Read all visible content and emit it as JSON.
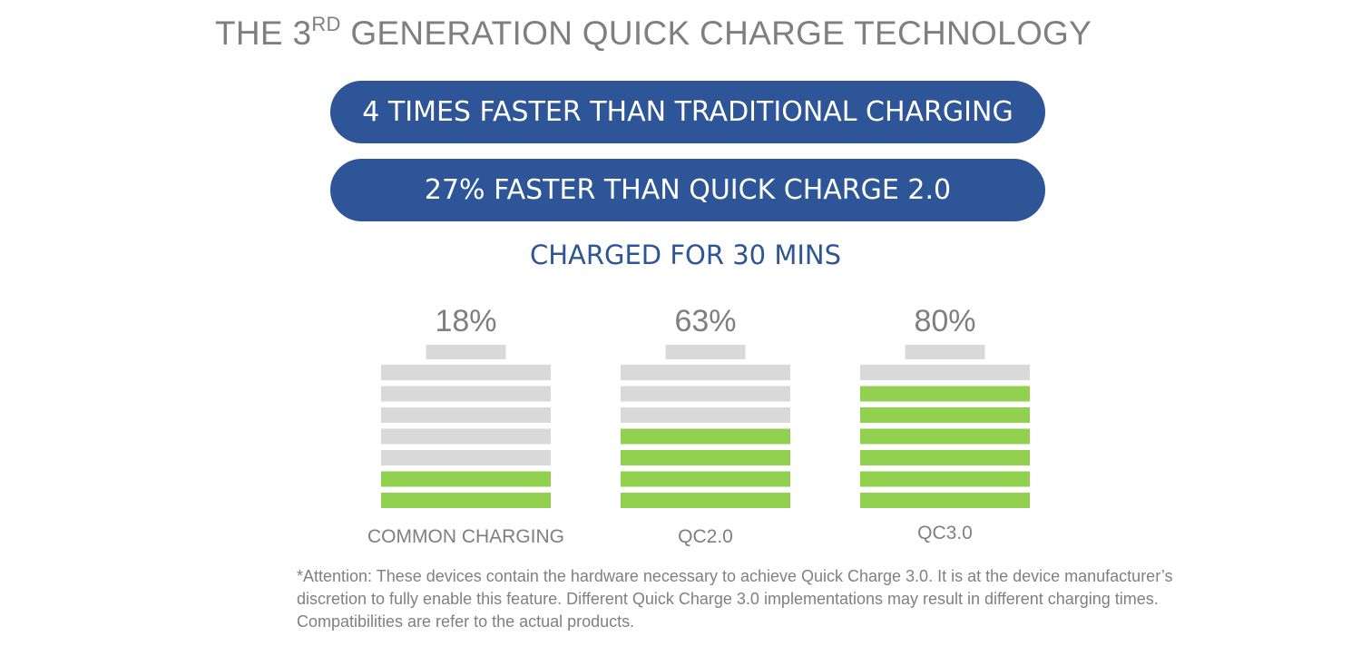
{
  "heading": {
    "prefix": "THE 3",
    "superscript": "RD",
    "suffix": " GENERATION QUICK CHARGE TECHNOLOGY"
  },
  "highlights": [
    "4 TIMES FASTER THAN TRADITIONAL CHARGING",
    "27% FASTER THAN QUICK CHARGE 2.0"
  ],
  "chart_data": {
    "type": "bar",
    "title": "CHARGED FOR 30 MINS",
    "categories": [
      "COMMON CHARGING",
      "QC2.0",
      "QC3.0"
    ],
    "values": [
      18,
      63,
      80
    ],
    "value_labels": [
      "18%",
      "63%",
      "80%"
    ],
    "segments_total": 7,
    "segments_filled": [
      2,
      4,
      6
    ],
    "unit": "%",
    "legend": "none",
    "grid": false
  },
  "colors": {
    "primary_blue": "#2e5597",
    "fill_green": "#92d050",
    "empty_gray": "#d9d9d9",
    "text_gray": "#7f7f7f"
  },
  "footnote": "*Attention: These devices contain the hardware necessary to achieve Quick Charge 3.0. It is at the device manufacturer’s discretion to fully enable this feature. Different Quick Charge 3.0 implementations may result in different charging times. Compatibilities are refer to the actual products."
}
